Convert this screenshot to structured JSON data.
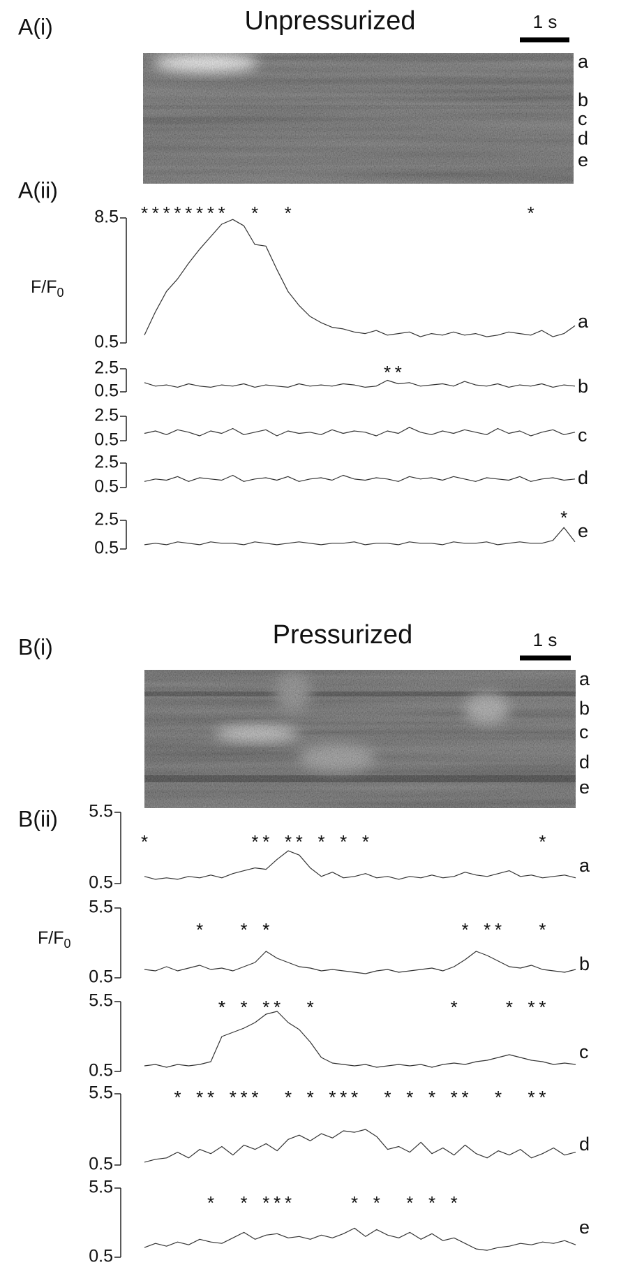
{
  "panels": [
    {
      "label": "A(i)",
      "title": "Unpressurized",
      "scale_bar": "1 s",
      "rows": [
        "a",
        "b",
        "c",
        "d",
        "e"
      ]
    },
    {
      "label": "A(ii)",
      "ylabel": {
        "text": "F/F",
        "sub": "0"
      },
      "event_marker": "*",
      "traces": [
        {
          "row": "a",
          "ylim": [
            0.5,
            8.5
          ],
          "yticks": [
            0.5,
            8.5
          ],
          "values": [
            1.0,
            2.5,
            3.8,
            4.6,
            5.6,
            6.5,
            7.3,
            8.1,
            8.4,
            8.0,
            6.8,
            6.7,
            5.2,
            3.8,
            2.9,
            2.2,
            1.8,
            1.5,
            1.4,
            1.2,
            1.1,
            1.3,
            1.0,
            1.1,
            1.2,
            0.9,
            1.1,
            1.0,
            1.2,
            1.0,
            1.1,
            0.9,
            1.0,
            1.2,
            1.1,
            1.0,
            1.3,
            0.9,
            1.1,
            1.6
          ],
          "events": [
            0,
            1,
            2,
            3,
            4,
            5,
            6,
            7,
            10,
            13,
            35
          ]
        },
        {
          "row": "b",
          "ylim": [
            0.5,
            2.5
          ],
          "yticks": [
            0.5,
            2.5
          ],
          "values": [
            1.3,
            1.0,
            1.1,
            0.9,
            1.2,
            1.0,
            0.9,
            1.1,
            1.0,
            1.2,
            0.9,
            1.1,
            1.0,
            0.9,
            1.2,
            1.0,
            1.1,
            1.0,
            1.2,
            1.1,
            0.9,
            1.0,
            1.5,
            1.2,
            1.3,
            1.0,
            1.1,
            1.2,
            1.0,
            1.4,
            1.1,
            1.0,
            1.2,
            0.9,
            1.1,
            1.0,
            1.2,
            0.9,
            1.1,
            1.0
          ],
          "events": [
            22,
            23
          ]
        },
        {
          "row": "c",
          "ylim": [
            0.5,
            2.5
          ],
          "yticks": [
            0.5,
            2.5
          ],
          "values": [
            1.1,
            1.3,
            1.0,
            1.4,
            1.2,
            0.9,
            1.3,
            1.1,
            1.5,
            1.0,
            1.2,
            1.4,
            0.9,
            1.3,
            1.1,
            1.2,
            1.0,
            1.4,
            1.1,
            1.3,
            1.2,
            0.9,
            1.3,
            1.1,
            1.6,
            1.2,
            1.0,
            1.3,
            1.1,
            1.4,
            1.2,
            1.0,
            1.5,
            1.1,
            1.3,
            0.9,
            1.2,
            1.4,
            1.0,
            1.2
          ],
          "events": []
        },
        {
          "row": "d",
          "ylim": [
            0.5,
            2.5
          ],
          "yticks": [
            0.5,
            2.5
          ],
          "values": [
            1.0,
            1.2,
            1.1,
            1.4,
            1.0,
            1.3,
            1.2,
            1.1,
            1.5,
            1.0,
            1.2,
            1.3,
            1.1,
            1.4,
            1.0,
            1.2,
            1.3,
            1.1,
            1.5,
            1.2,
            1.1,
            1.3,
            1.2,
            1.0,
            1.4,
            1.2,
            1.3,
            1.1,
            1.4,
            1.2,
            1.0,
            1.3,
            1.2,
            1.1,
            1.4,
            1.0,
            1.2,
            1.3,
            1.1,
            1.2
          ],
          "events": []
        },
        {
          "row": "e",
          "ylim": [
            0.5,
            2.5
          ],
          "yticks": [
            0.5,
            2.5
          ],
          "values": [
            0.8,
            0.9,
            0.8,
            1.0,
            0.9,
            0.8,
            1.0,
            0.9,
            0.9,
            0.8,
            1.0,
            0.9,
            0.8,
            0.9,
            1.0,
            0.9,
            0.8,
            0.9,
            0.9,
            1.0,
            0.8,
            0.9,
            0.9,
            0.8,
            1.0,
            0.9,
            0.9,
            0.8,
            1.0,
            0.9,
            0.9,
            1.0,
            0.8,
            0.9,
            1.0,
            0.9,
            0.9,
            1.1,
            2.0,
            1.0
          ],
          "events": [
            38
          ]
        }
      ]
    },
    {
      "label": "B(i)",
      "title": "Pressurized",
      "scale_bar": "1 s",
      "rows": [
        "a",
        "b",
        "c",
        "d",
        "e"
      ]
    },
    {
      "label": "B(ii)",
      "ylabel": {
        "text": "F/F",
        "sub": "0"
      },
      "event_marker": "*",
      "traces": [
        {
          "row": "a",
          "ylim": [
            0.5,
            5.5
          ],
          "yticks": [
            0.5,
            5.5
          ],
          "values": [
            1.0,
            0.8,
            0.9,
            0.8,
            1.0,
            0.9,
            1.1,
            0.9,
            1.2,
            1.4,
            1.6,
            1.5,
            2.2,
            2.8,
            2.5,
            1.6,
            1.0,
            1.3,
            0.9,
            1.0,
            1.2,
            0.9,
            1.0,
            0.8,
            1.0,
            0.9,
            1.1,
            0.9,
            1.0,
            1.3,
            1.1,
            1.0,
            1.2,
            1.4,
            1.0,
            1.1,
            0.9,
            1.0,
            1.1,
            0.9
          ],
          "events": [
            0,
            10,
            11,
            13,
            14,
            16,
            18,
            20,
            36
          ]
        },
        {
          "row": "b",
          "ylim": [
            0.5,
            5.5
          ],
          "yticks": [
            0.5,
            5.5
          ],
          "values": [
            1.1,
            1.0,
            1.3,
            1.0,
            1.2,
            1.4,
            1.1,
            1.2,
            1.0,
            1.3,
            1.6,
            2.4,
            1.9,
            1.6,
            1.3,
            1.2,
            1.0,
            1.1,
            1.0,
            0.9,
            0.8,
            1.0,
            1.1,
            0.9,
            1.0,
            1.1,
            1.2,
            1.0,
            1.3,
            1.8,
            2.4,
            2.1,
            1.7,
            1.3,
            1.2,
            1.4,
            1.1,
            1.0,
            0.9,
            1.1
          ],
          "events": [
            5,
            9,
            11,
            11,
            29,
            31,
            32,
            36
          ]
        },
        {
          "row": "c",
          "ylim": [
            0.5,
            5.5
          ],
          "yticks": [
            0.5,
            5.5
          ],
          "values": [
            0.9,
            1.0,
            0.8,
            1.0,
            0.9,
            1.0,
            1.2,
            3.0,
            3.3,
            3.6,
            4.0,
            4.6,
            4.8,
            4.0,
            3.5,
            2.6,
            1.5,
            1.1,
            1.0,
            0.9,
            1.0,
            0.8,
            0.9,
            1.0,
            0.9,
            1.0,
            0.8,
            1.0,
            1.1,
            1.0,
            1.2,
            1.3,
            1.5,
            1.7,
            1.5,
            1.3,
            1.2,
            1.0,
            1.1,
            1.0
          ],
          "events": [
            7,
            7,
            9,
            11,
            12,
            15,
            28,
            33,
            35,
            36
          ]
        },
        {
          "row": "d",
          "ylim": [
            0.5,
            5.5
          ],
          "yticks": [
            0.5,
            5.5
          ],
          "values": [
            0.7,
            0.9,
            1.0,
            1.4,
            1.0,
            1.6,
            1.3,
            1.8,
            1.2,
            1.9,
            1.6,
            2.0,
            1.5,
            2.3,
            2.6,
            2.2,
            2.7,
            2.4,
            2.9,
            2.8,
            3.0,
            2.5,
            1.6,
            1.8,
            1.4,
            2.1,
            1.3,
            1.7,
            1.2,
            1.9,
            1.3,
            1.0,
            1.5,
            1.2,
            1.6,
            1.0,
            1.3,
            1.7,
            1.2,
            1.4
          ],
          "events": [
            3,
            5,
            6,
            8,
            9,
            10,
            13,
            15,
            17,
            18,
            19,
            22,
            24,
            26,
            28,
            29,
            32,
            35,
            36
          ]
        },
        {
          "row": "e",
          "ylim": [
            0.5,
            5.5
          ],
          "yticks": [
            0.5,
            5.5
          ],
          "values": [
            1.2,
            1.5,
            1.3,
            1.6,
            1.4,
            1.8,
            1.6,
            1.5,
            1.9,
            2.3,
            1.8,
            2.1,
            2.2,
            1.9,
            2.0,
            1.8,
            2.1,
            1.9,
            2.2,
            2.6,
            2.0,
            2.5,
            2.1,
            1.9,
            2.3,
            1.8,
            2.2,
            1.7,
            1.9,
            1.5,
            1.1,
            1.0,
            1.2,
            1.3,
            1.5,
            1.4,
            1.6,
            1.5,
            1.7,
            1.4
          ],
          "events": [
            6,
            9,
            11,
            12,
            12,
            13,
            19,
            21,
            24,
            26,
            28
          ]
        }
      ]
    }
  ]
}
